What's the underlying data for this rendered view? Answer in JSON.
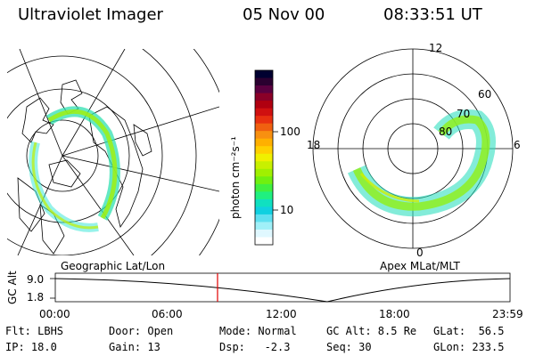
{
  "header": {
    "instrument": "Ultraviolet Imager",
    "date": "05 Nov 00",
    "time": "08:33:51 UT"
  },
  "geo_panel": {
    "caption": "Geographic Lat/Lon"
  },
  "mag_panel": {
    "caption": "Apex MLat/MLT",
    "mlt_labels": [
      "12",
      "18",
      "6",
      "0"
    ],
    "mlat_labels": [
      "60",
      "70",
      "80"
    ]
  },
  "colorbar": {
    "unit_label": "photon cm⁻²s⁻¹",
    "tick_labels": [
      "100",
      "10"
    ],
    "colors": [
      "#000030",
      "#2a0030",
      "#5a0040",
      "#8a0028",
      "#b00010",
      "#d01010",
      "#e83010",
      "#f06010",
      "#f89010",
      "#ffb000",
      "#ffd000",
      "#f0f000",
      "#c8f000",
      "#a0f000",
      "#70f010",
      "#40f040",
      "#20f080",
      "#10e0c0",
      "#10d0e0",
      "#60e0f0",
      "#a0f0f8",
      "#e0f8ff",
      "#ffffff"
    ]
  },
  "timeline": {
    "axis_label": "GC Alt",
    "y_ticks": [
      "9.0",
      "1.8"
    ],
    "x_ticks": [
      "00:00",
      "06:00",
      "12:00",
      "18:00",
      "23:59"
    ],
    "current_time_fraction": 0.3568,
    "marker_color": "#e00000"
  },
  "info": {
    "flt": "Flt: LBHS",
    "ip": "IP: 18.0",
    "door": "Door: Open",
    "gain": "Gain: 13",
    "mode": "Mode: Normal",
    "dsp": "Dsp:   -2.3",
    "gc_alt": "GC Alt: 8.5 Re",
    "seq": "Seq: 30",
    "glat": "GLat:  56.5",
    "glon": "GLon: 233.5"
  }
}
